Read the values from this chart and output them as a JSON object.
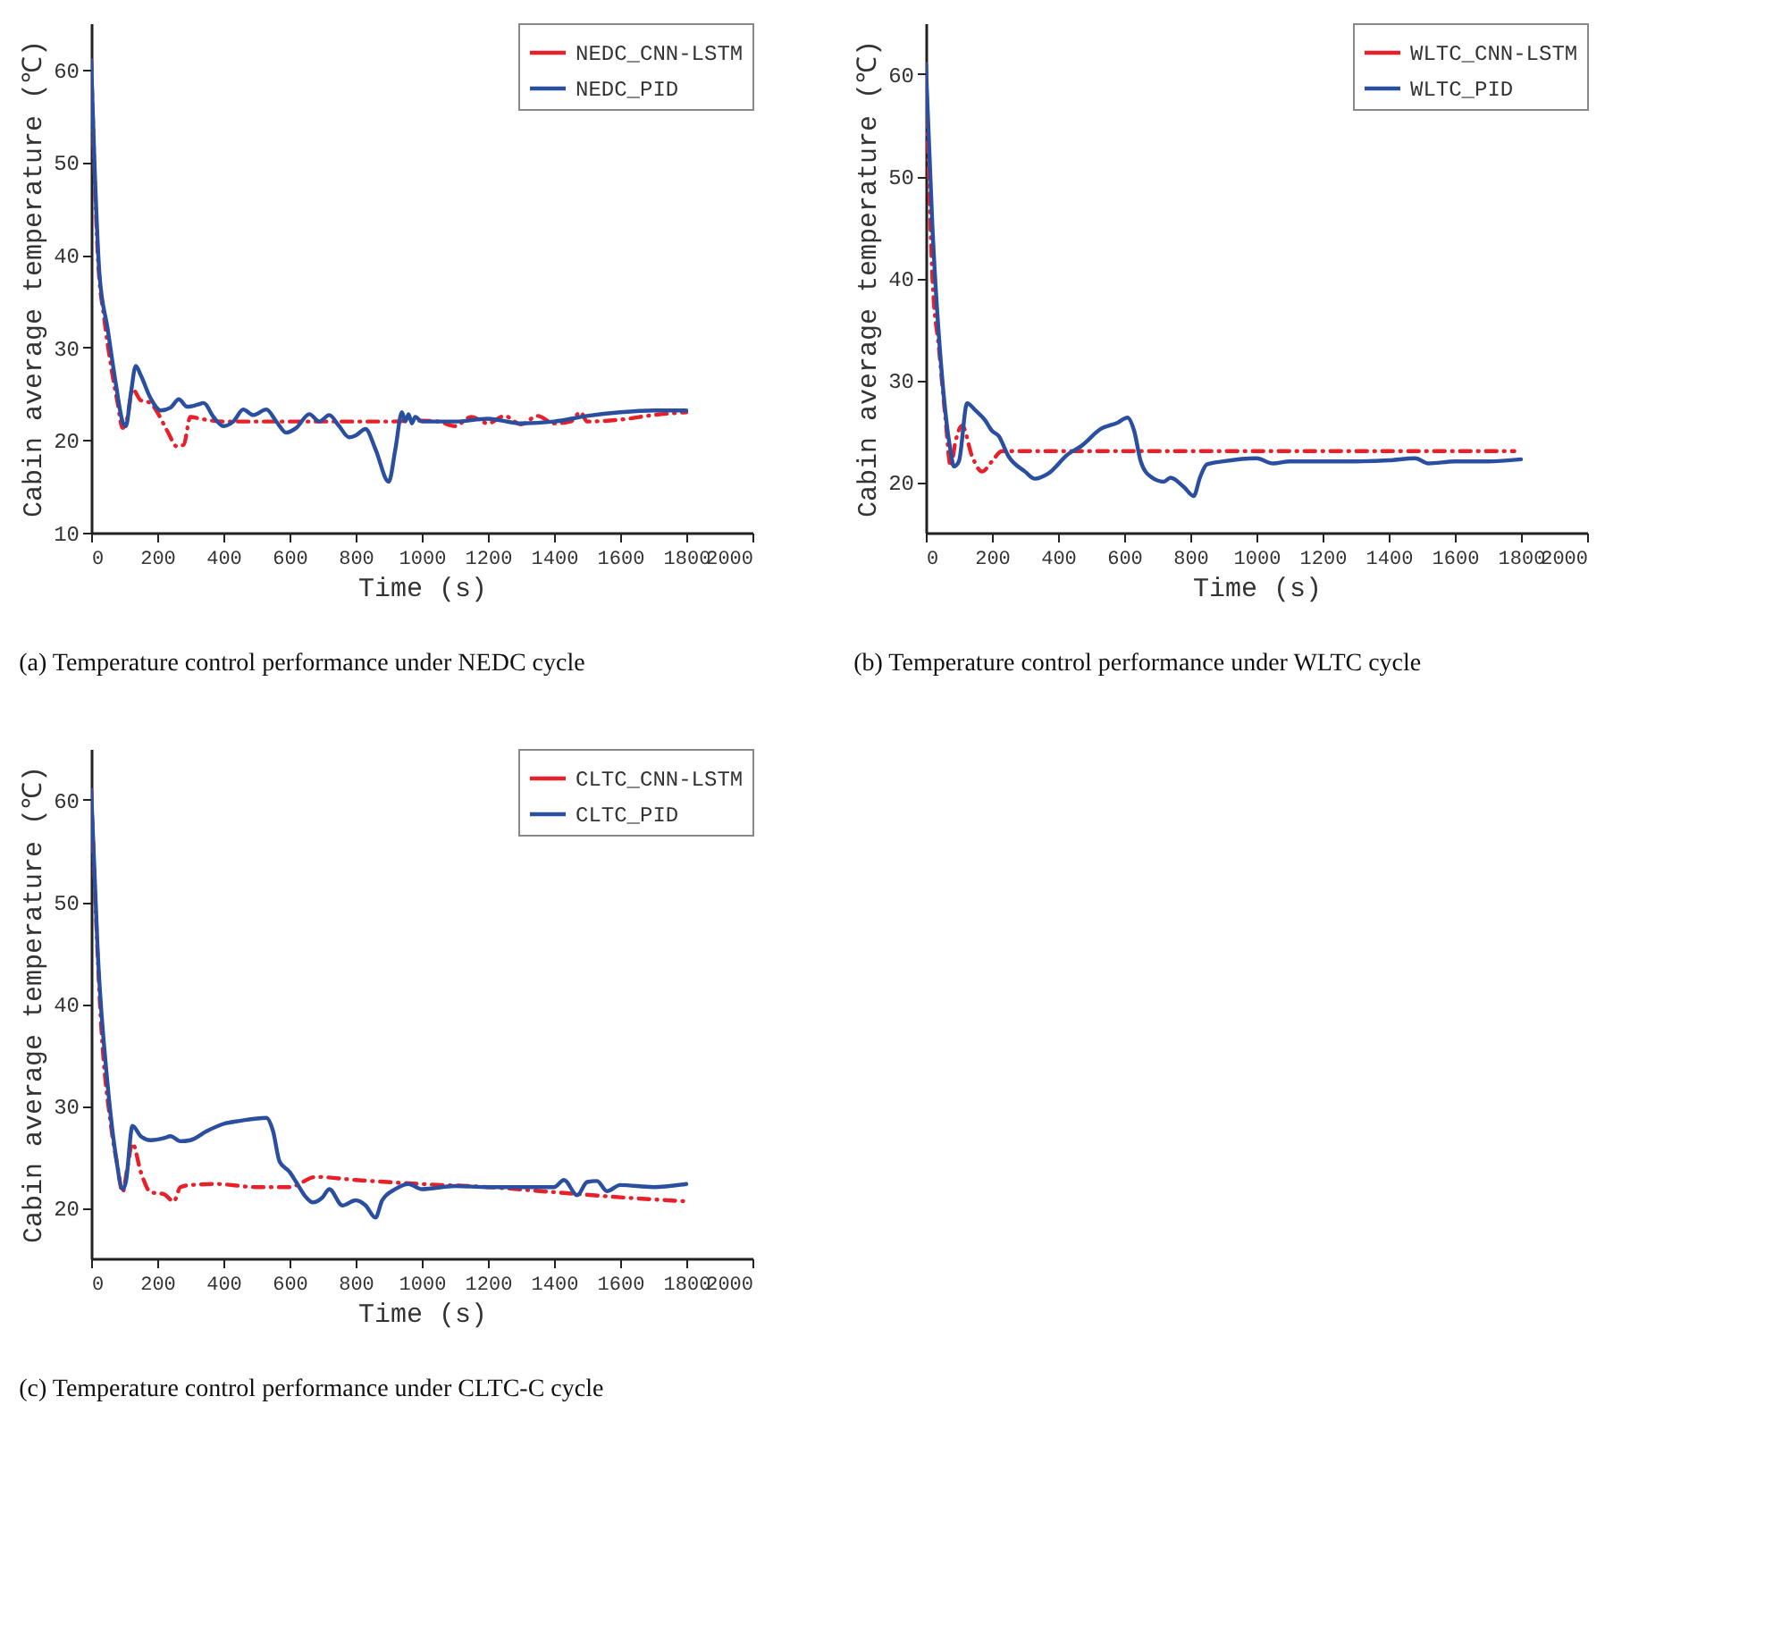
{
  "chart_data": [
    {
      "type": "line",
      "title": "(a) Temperature control performance under NEDC cycle",
      "xlabel": "Time (s)",
      "ylabel": "Cabin average temperature (℃)",
      "xlim": [
        0,
        2000
      ],
      "xticks": [
        0,
        200,
        400,
        600,
        800,
        1000,
        1200,
        1400,
        1600,
        1800,
        2000
      ],
      "ylim": [
        10,
        65
      ],
      "yticks": [
        10,
        20,
        30,
        40,
        50,
        60
      ],
      "grid": false,
      "legend": "top right",
      "series": [
        {
          "name": "NEDC_CNN-LSTM",
          "color": "#e8202a",
          "line_style": "dashed",
          "x": [
            0,
            20,
            40,
            60,
            80,
            95,
            110,
            125,
            150,
            180,
            200,
            230,
            260,
            280,
            300,
            330,
            400,
            500,
            600,
            700,
            800,
            900,
            1000,
            1050,
            1100,
            1150,
            1200,
            1250,
            1300,
            1350,
            1400,
            1450,
            1480,
            1500,
            1600,
            1700,
            1800
          ],
          "values": [
            61,
            40,
            33,
            28,
            24,
            21.3,
            22.5,
            25.5,
            24.3,
            24,
            23,
            21,
            19.3,
            19.5,
            22.5,
            22.3,
            22,
            22,
            22,
            22,
            22,
            22,
            22.1,
            22,
            21.5,
            22.5,
            21.8,
            22.6,
            21.7,
            22.6,
            21.8,
            22,
            23,
            22,
            22.2,
            22.7,
            23
          ]
        },
        {
          "name": "NEDC_PID",
          "color": "#2a4fa0",
          "line_style": "solid",
          "x": [
            0,
            10,
            25,
            50,
            75,
            95,
            105,
            120,
            135,
            150,
            180,
            210,
            240,
            265,
            290,
            320,
            340,
            370,
            400,
            430,
            460,
            490,
            530,
            560,
            590,
            620,
            660,
            690,
            720,
            750,
            780,
            800,
            830,
            860,
            900,
            920,
            940,
            950,
            960,
            970,
            980,
            1000,
            1100,
            1200,
            1300,
            1400,
            1500,
            1600,
            1700,
            1800
          ],
          "values": [
            61,
            50,
            38,
            32,
            26,
            22,
            21.5,
            25,
            28,
            27,
            24.5,
            23.2,
            23.5,
            24.4,
            23.6,
            23.8,
            24,
            22.5,
            21.5,
            22,
            23.3,
            22.7,
            23.3,
            22,
            20.8,
            21.3,
            22.8,
            22,
            22.7,
            21.5,
            20.3,
            20.5,
            21.2,
            19,
            15.5,
            19,
            23,
            22,
            22.8,
            21.8,
            22.5,
            22,
            22,
            22.3,
            21.8,
            22,
            22.6,
            23,
            23.2,
            23.2
          ]
        }
      ]
    },
    {
      "type": "line",
      "title": "(b) Temperature control performance under WLTC cycle",
      "xlabel": "Time (s)",
      "ylabel": "Cabin average temperature (℃)",
      "xlim": [
        0,
        2000
      ],
      "xticks": [
        0,
        200,
        400,
        600,
        800,
        1000,
        1200,
        1400,
        1600,
        1800,
        2000
      ],
      "ylim": [
        15,
        65
      ],
      "yticks": [
        20,
        30,
        40,
        50,
        60
      ],
      "grid": false,
      "legend": "top right",
      "series": [
        {
          "name": "WLTC_CNN-LSTM",
          "color": "#e8202a",
          "line_style": "dashed",
          "x": [
            0,
            20,
            40,
            60,
            75,
            90,
            110,
            140,
            170,
            200,
            230,
            1780
          ],
          "values": [
            61,
            40,
            33,
            26,
            21.5,
            24,
            25.5,
            22.5,
            21,
            22,
            23,
            23
          ]
        },
        {
          "name": "WLTC_PID",
          "color": "#2a4fa0",
          "line_style": "solid",
          "x": [
            0,
            20,
            50,
            75,
            85,
            100,
            125,
            150,
            180,
            200,
            220,
            250,
            300,
            330,
            370,
            430,
            470,
            530,
            580,
            610,
            630,
            650,
            680,
            720,
            740,
            780,
            810,
            830,
            850,
            900,
            1000,
            1050,
            1100,
            1200,
            1300,
            1400,
            1480,
            1520,
            1600,
            1700,
            1800
          ],
          "values": [
            61,
            45,
            30,
            23,
            21.5,
            22,
            27.7,
            27,
            26,
            25,
            24.5,
            22.5,
            21,
            20.3,
            20.8,
            22.7,
            23.5,
            25.2,
            25.8,
            26.3,
            25,
            22,
            20.5,
            20,
            20.4,
            19.5,
            18.6,
            20.5,
            21.7,
            22,
            22.3,
            21.8,
            22,
            22,
            22,
            22.1,
            22.3,
            21.8,
            22,
            22,
            22.2
          ]
        }
      ]
    },
    {
      "type": "line",
      "title": "(c) Temperature control performance under CLTC-C cycle",
      "xlabel": "Time (s)",
      "ylabel": "Cabin average temperature (℃)",
      "xlim": [
        0,
        2000
      ],
      "xticks": [
        0,
        200,
        400,
        600,
        800,
        1000,
        1200,
        1400,
        1600,
        1800,
        2000
      ],
      "ylim": [
        15,
        65
      ],
      "yticks": [
        20,
        30,
        40,
        50,
        60
      ],
      "grid": false,
      "legend": "top right",
      "series": [
        {
          "name": "CLTC_CNN-LSTM",
          "color": "#e8202a",
          "line_style": "dashed",
          "x": [
            0,
            30,
            60,
            80,
            95,
            110,
            125,
            150,
            180,
            220,
            250,
            270,
            300,
            380,
            500,
            600,
            680,
            800,
            1000,
            1200,
            1400,
            1600,
            1800
          ],
          "values": [
            61,
            38,
            28,
            24,
            21.5,
            24,
            26.3,
            23.5,
            21.5,
            21.3,
            20.6,
            22,
            22.2,
            22.3,
            22,
            22,
            23,
            22.7,
            22.3,
            22,
            21.5,
            21,
            20.6
          ]
        },
        {
          "name": "CLTC_PID",
          "color": "#2a4fa0",
          "line_style": "solid",
          "x": [
            0,
            20,
            50,
            75,
            95,
            105,
            125,
            150,
            180,
            220,
            240,
            270,
            300,
            350,
            400,
            450,
            530,
            550,
            570,
            600,
            620,
            650,
            670,
            700,
            720,
            760,
            800,
            830,
            860,
            880,
            920,
            960,
            1000,
            1100,
            1200,
            1300,
            1400,
            1430,
            1470,
            1500,
            1530,
            1560,
            1600,
            1700,
            1800
          ],
          "values": [
            61,
            45,
            32,
            25,
            21.8,
            22.5,
            28,
            27,
            26.6,
            26.8,
            27,
            26.5,
            26.6,
            27.5,
            28.2,
            28.5,
            28.8,
            27.5,
            24.5,
            23.5,
            22.5,
            21,
            20.5,
            21,
            21.8,
            20.2,
            20.7,
            20.2,
            19,
            20.7,
            21.8,
            22.3,
            21.8,
            22.1,
            22,
            22,
            22,
            22.7,
            21.2,
            22.5,
            22.6,
            21.6,
            22.2,
            22,
            22.3
          ]
        }
      ]
    }
  ]
}
